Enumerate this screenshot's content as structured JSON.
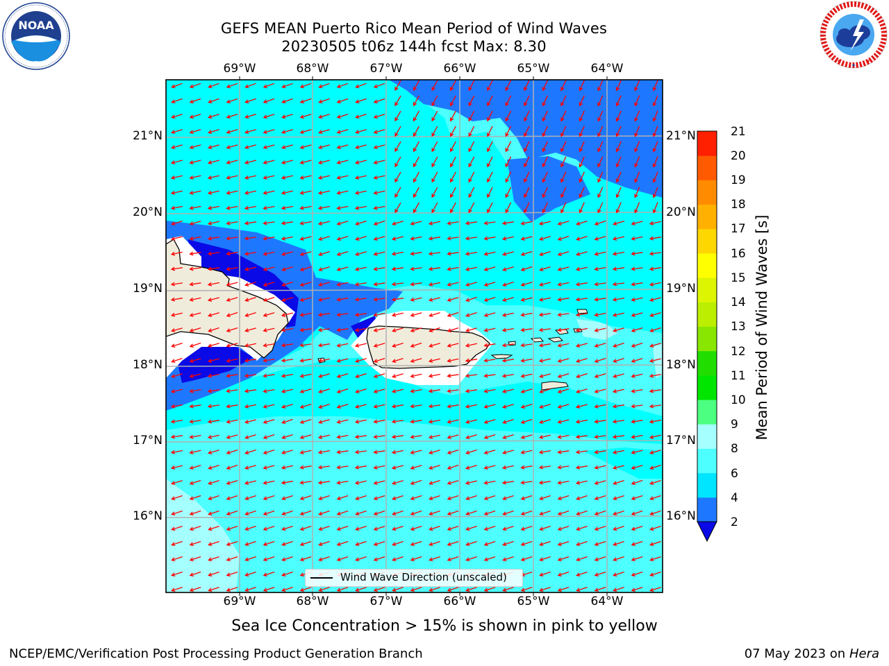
{
  "header": {
    "title_line1": "GEFS MEAN Puerto Rico Mean Period of Wind Waves",
    "title_line2": "20230505 t06z 144h fcst   Max: 8.30"
  },
  "logos": {
    "left": {
      "name": "NOAA",
      "ring_text": "NATIONAL OCEANIC AND ATMOSPHERIC ADMINISTRATION · U.S. DEPARTMENT OF COMMERCE"
    },
    "right": {
      "name": "NATIONAL WEATHER SERVICE"
    }
  },
  "map": {
    "lon_labels": [
      "69°W",
      "68°W",
      "67°W",
      "66°W",
      "65°W",
      "64°W"
    ],
    "lat_labels": [
      "21°N",
      "20°N",
      "19°N",
      "18°N",
      "17°N",
      "16°N"
    ],
    "colors": {
      "period_2_4": "#1e78ff",
      "period_4_6": "#00ffff",
      "period_6_8": "#4dffff",
      "period_8_9": "#a6ffff",
      "below_2": "#0a0ae6",
      "land": "#efecdc",
      "arrow": "#ff0000",
      "grid": "#b0b0b0"
    }
  },
  "colorbar": {
    "label": "Mean Period of Wind Waves [s]",
    "ticks": [
      "2",
      "4",
      "6",
      "8",
      "9",
      "10",
      "11",
      "12",
      "13",
      "14",
      "15",
      "16",
      "17",
      "18",
      "19",
      "20",
      "21"
    ],
    "colors": [
      "#1e78ff",
      "#00e5ff",
      "#4dffff",
      "#a6ffff",
      "#4dff80",
      "#00e600",
      "#22dd00",
      "#88e600",
      "#bbee00",
      "#ddf500",
      "#ffff00",
      "#ffd700",
      "#ffb000",
      "#ff8c00",
      "#ff5a00",
      "#ff2000"
    ],
    "under_color": "#0a0ae6"
  },
  "legend": {
    "label": "Wind Wave Direction (unscaled)"
  },
  "footer": {
    "note": "Sea Ice Concentration > 15% is shown in pink to yellow",
    "credit": "NCEP/EMC/Verification Post Processing Product Generation Branch",
    "date": "07 May 2023 on",
    "machine": "Hera"
  }
}
